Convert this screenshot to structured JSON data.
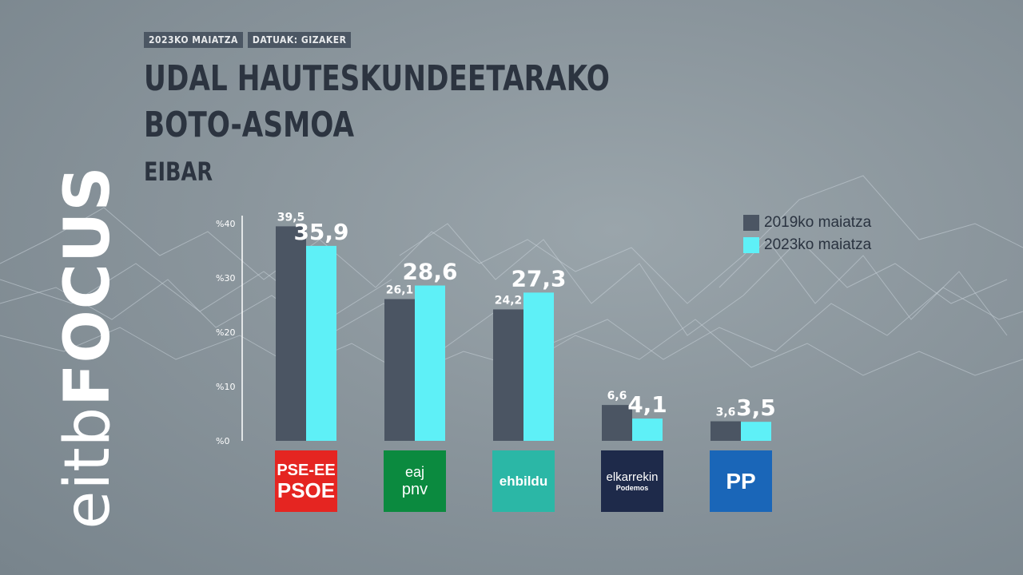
{
  "tags": {
    "date": "2023KO MAIATZA",
    "source": "DATUAK: GIZAKER"
  },
  "title": {
    "line1": "UDAL HAUTESKUNDEETARAKO",
    "line2": "BOTO-ASMOA"
  },
  "subtitle": "EIBAR",
  "logo": {
    "brand": "eitb",
    "product": "FOCUS"
  },
  "colors": {
    "series_2019": "#4b5563",
    "series_2023": "#5ef0f7",
    "axis": "#ffffff"
  },
  "chart_data": {
    "type": "bar",
    "categories": [
      "PSE-EE PSOE",
      "EAJ-PNV",
      "EH Bildu",
      "Elkarrekin Podemos",
      "PP"
    ],
    "series": [
      {
        "name": "2019ko maiatza",
        "values": [
          39.5,
          26.1,
          24.2,
          6.6,
          3.6
        ],
        "labels": [
          "39,5",
          "26,1",
          "24,2",
          "6,6",
          "3,6"
        ]
      },
      {
        "name": "2023ko maiatza",
        "values": [
          35.9,
          28.6,
          27.3,
          4.1,
          3.5
        ],
        "labels": [
          "35,9",
          "28,6",
          "27,3",
          "4,1",
          "3,5"
        ]
      }
    ],
    "yticks": [
      "%0",
      "%10",
      "%20",
      "%30",
      "%40"
    ],
    "ylim": [
      0,
      40
    ],
    "legend": "top-right"
  },
  "parties": [
    {
      "line1": "PSE-EE",
      "line2": "PSOE",
      "bg": "#e52521"
    },
    {
      "line1": "eaj",
      "line2": "pnv",
      "bg": "#0b8a3f"
    },
    {
      "line1": "ehbildu",
      "line2": "",
      "bg": "#2bb7a6"
    },
    {
      "line1": "elkarrekin",
      "line2": "Podemos",
      "bg": "#1e2a4a"
    },
    {
      "line1": "PP",
      "line2": "",
      "bg": "#1a66b8"
    }
  ]
}
